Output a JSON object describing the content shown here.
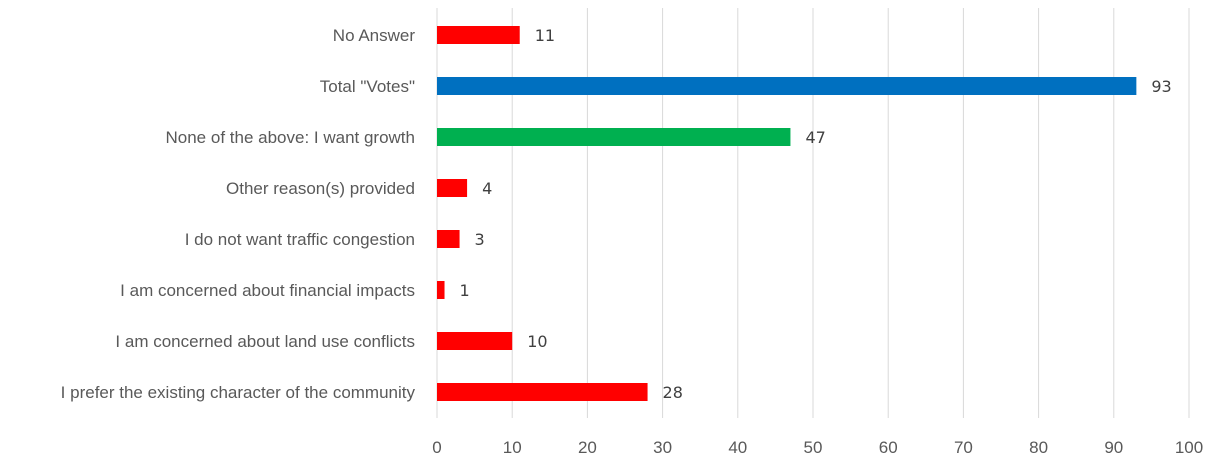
{
  "chart_data": {
    "type": "bar",
    "orientation": "horizontal",
    "title": "",
    "xlabel": "",
    "ylabel": "",
    "categories": [
      "No Answer",
      "Total \"Votes\"",
      "None of the above: I want growth",
      "Other reason(s) provided",
      "I do not want traffic congestion",
      "I am concerned about financial impacts",
      "I am concerned about land use conflicts",
      "I prefer the existing character of the community"
    ],
    "values": [
      11,
      93,
      47,
      4,
      3,
      1,
      10,
      28
    ],
    "bar_colors": [
      "#ff0000",
      "#0070c0",
      "#00b050",
      "#ff0000",
      "#ff0000",
      "#ff0000",
      "#ff0000",
      "#ff0000"
    ],
    "xlim": [
      0,
      100
    ],
    "xticks": [
      "0",
      "10",
      "20",
      "30",
      "40",
      "50",
      "60",
      "70",
      "80",
      "90",
      "100"
    ],
    "grid": true,
    "legend": "none"
  }
}
